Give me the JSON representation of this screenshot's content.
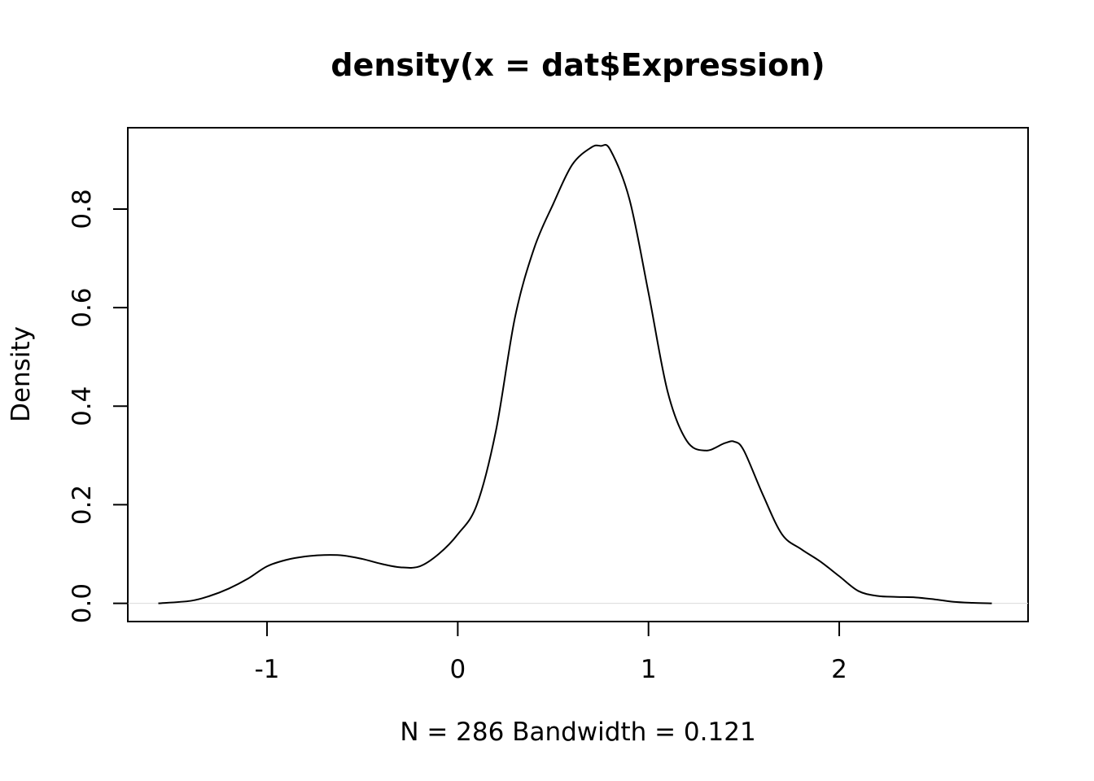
{
  "chart_data": {
    "type": "line",
    "title": "density(x = dat$Expression)",
    "xlabel": "N = 286   Bandwidth = 0.121",
    "ylabel": "Density",
    "xlim": [
      -1.73,
      2.99
    ],
    "ylim": [
      -0.037,
      0.965
    ],
    "x_ticks": [
      -1,
      0,
      1,
      2
    ],
    "y_ticks": [
      0.0,
      0.2,
      0.4,
      0.6,
      0.8
    ],
    "x_tick_labels": [
      "-1",
      "0",
      "1",
      "2"
    ],
    "y_tick_labels": [
      "0.0",
      "0.2",
      "0.4",
      "0.6",
      "0.8"
    ],
    "zero_line": true,
    "grid": false,
    "series": [
      {
        "x": [
          -1.57,
          -1.4,
          -1.3,
          -1.2,
          -1.1,
          -1.0,
          -0.9,
          -0.8,
          -0.7,
          -0.6,
          -0.5,
          -0.4,
          -0.3,
          -0.2,
          -0.1,
          0.0,
          0.1,
          0.2,
          0.3,
          0.4,
          0.5,
          0.6,
          0.7,
          0.75,
          0.8,
          0.9,
          1.0,
          1.1,
          1.2,
          1.3,
          1.4,
          1.45,
          1.5,
          1.6,
          1.7,
          1.8,
          1.9,
          2.0,
          2.1,
          2.2,
          2.3,
          2.4,
          2.5,
          2.6,
          2.7,
          2.8
        ],
        "y": [
          0.0,
          0.005,
          0.015,
          0.03,
          0.05,
          0.075,
          0.088,
          0.095,
          0.098,
          0.097,
          0.09,
          0.08,
          0.073,
          0.075,
          0.1,
          0.14,
          0.2,
          0.35,
          0.58,
          0.72,
          0.81,
          0.89,
          0.925,
          0.928,
          0.92,
          0.82,
          0.63,
          0.43,
          0.33,
          0.31,
          0.325,
          0.328,
          0.31,
          0.22,
          0.14,
          0.11,
          0.085,
          0.055,
          0.025,
          0.015,
          0.013,
          0.012,
          0.008,
          0.003,
          0.001,
          0.0
        ],
        "color": "#000000"
      }
    ]
  }
}
